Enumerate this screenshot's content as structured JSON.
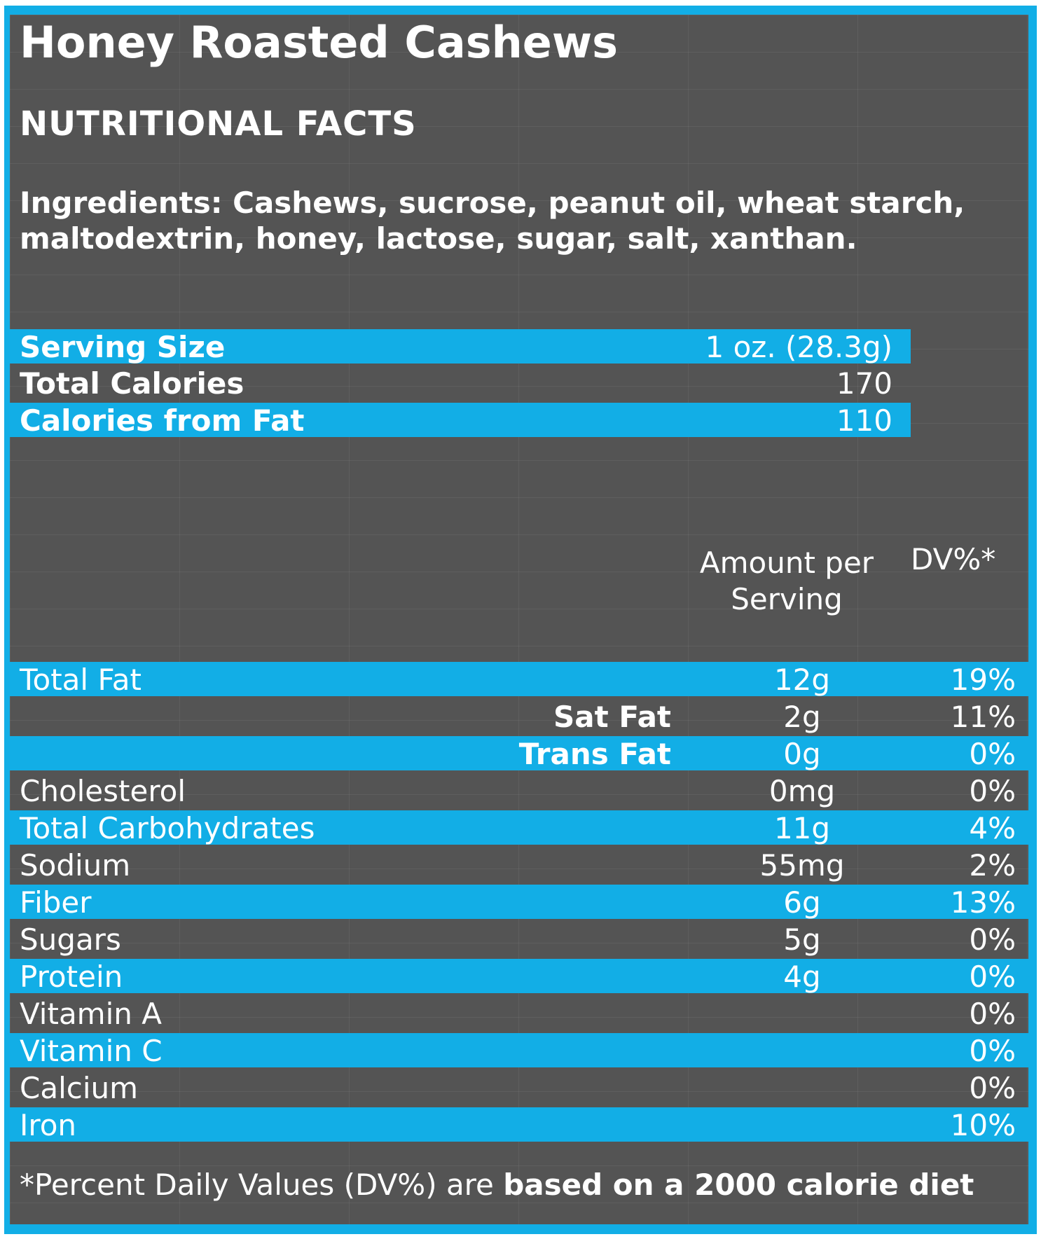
{
  "title": "Honey Roasted Cashews",
  "subtitle": "NUTRITIONAL FACTS",
  "ingredients": "Ingredients: Cashews, sucrose, peanut oil, wheat starch, maltodextrin, honey, lactose, sugar, salt, xanthan.",
  "summary": [
    {
      "label": "Serving Size",
      "value": "1 oz. (28.3g)"
    },
    {
      "label": "Total Calories",
      "value": "170"
    },
    {
      "label": "Calories from Fat",
      "value": "110"
    }
  ],
  "table_header": {
    "amount": "Amount per Serving",
    "dv": "DV%*"
  },
  "nutrients": [
    {
      "name": "Total Fat",
      "amount": "12g",
      "dv": "19%"
    },
    {
      "name": "Sat Fat",
      "amount": "2g",
      "dv": "11%"
    },
    {
      "name": "Trans Fat",
      "amount": "0g",
      "dv": "0%"
    },
    {
      "name": "Cholesterol",
      "amount": "0mg",
      "dv": "0%"
    },
    {
      "name": "Total Carbohydrates",
      "amount": "11g",
      "dv": "4%"
    },
    {
      "name": "Sodium",
      "amount": "55mg",
      "dv": "2%"
    },
    {
      "name": "Fiber",
      "amount": "6g",
      "dv": "13%"
    },
    {
      "name": "Sugars",
      "amount": "5g",
      "dv": "0%"
    },
    {
      "name": "Protein",
      "amount": "4g",
      "dv": "0%"
    },
    {
      "name": "Vitamin A",
      "amount": "",
      "dv": "0%"
    },
    {
      "name": "Vitamin C",
      "amount": "",
      "dv": "0%"
    },
    {
      "name": "Calcium",
      "amount": "",
      "dv": "0%"
    },
    {
      "name": "Iron",
      "amount": "",
      "dv": "10%"
    }
  ],
  "footnote": {
    "normal": "*Percent Daily Values (DV%) are ",
    "bold": "based on a 2000 calorie diet"
  },
  "colors": {
    "accent_blue": "#12aee6",
    "panel_gray": "#545454",
    "text": "#ffffff"
  }
}
